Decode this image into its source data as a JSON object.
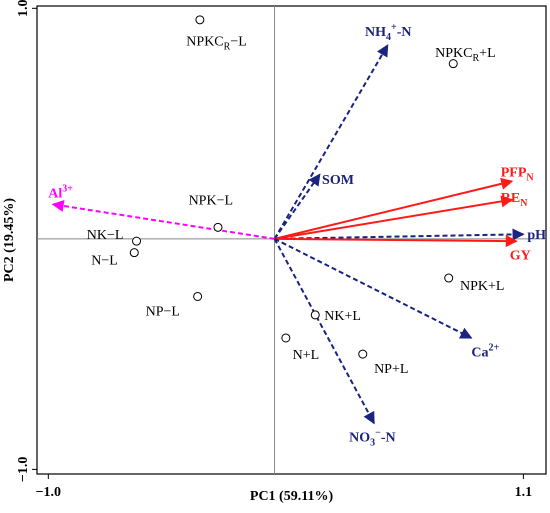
{
  "chart_data": {
    "type": "scatter",
    "subtype": "pca-biplot",
    "title": "",
    "xlabel": "PC1  (59.11%)",
    "ylabel": "PC2  (19.45%)",
    "xlim": [
      -1.05,
      1.2
    ],
    "ylim": [
      -1.02,
      1.01
    ],
    "x_ticks": [
      {
        "value": -1.0,
        "label": "−1.0"
      },
      {
        "value": 1.1,
        "label": "1.1"
      }
    ],
    "y_ticks": [
      {
        "value": 1.0,
        "label": "1.0"
      },
      {
        "value": -1.0,
        "label": "−1.0"
      }
    ],
    "grid": false,
    "reference_lines": {
      "x": 0,
      "y": 0
    },
    "point_style": {
      "marker": "open-circle",
      "color": "#000000"
    },
    "points": [
      {
        "name": "NPKC",
        "sub": "R",
        "suffix": "−L",
        "x": -0.33,
        "y": 0.95,
        "label_dx": -0.06,
        "label_dy": -0.09
      },
      {
        "name": "NPKC",
        "sub": "R",
        "suffix": "+L",
        "x": 0.79,
        "y": 0.76,
        "label_dx": -0.08,
        "label_dy": 0.05
      },
      {
        "name": "NPK−L",
        "x": -0.25,
        "y": 0.05,
        "label_dx": -0.13,
        "label_dy": 0.12
      },
      {
        "name": "NK−L",
        "x": -0.61,
        "y": -0.01,
        "label_dx": -0.22,
        "label_dy": 0.03
      },
      {
        "name": "N−L",
        "x": -0.62,
        "y": -0.06,
        "label_dx": -0.19,
        "label_dy": -0.03
      },
      {
        "name": "NP−L",
        "x": -0.34,
        "y": -0.25,
        "label_dx": -0.23,
        "label_dy": -0.06
      },
      {
        "name": "NPK+L",
        "x": 0.77,
        "y": -0.17,
        "label_dx": 0.05,
        "label_dy": -0.03
      },
      {
        "name": "NK+L",
        "x": 0.18,
        "y": -0.33,
        "label_dx": 0.04,
        "label_dy": 0.0
      },
      {
        "name": "N+L",
        "x": 0.05,
        "y": -0.43,
        "label_dx": 0.03,
        "label_dy": -0.07
      },
      {
        "name": "NP+L",
        "x": 0.39,
        "y": -0.5,
        "label_dx": 0.05,
        "label_dy": -0.06
      }
    ],
    "vectors": [
      {
        "label": "NH4+-N",
        "display": "NH",
        "sub": "4",
        "sup": "+",
        "tail": "-N",
        "color": "#1a237e",
        "style": "dashed",
        "x": 0.5,
        "y": 0.84,
        "label_x": 0.4,
        "label_y": 0.88
      },
      {
        "label": "SOM",
        "color": "#1a237e",
        "style": "dashed",
        "x": 0.2,
        "y": 0.28,
        "label_x": 0.21,
        "label_y": 0.25
      },
      {
        "label": "Al3+",
        "display": "Al",
        "sup": "3+",
        "color": "#ff00ff",
        "style": "dashed",
        "x": -0.98,
        "y": 0.15,
        "label_x": -1.0,
        "label_y": 0.18
      },
      {
        "label": "PFPN",
        "display": "PFP",
        "sub": "N",
        "color": "#ff1a1a",
        "style": "solid",
        "x": 1.05,
        "y": 0.25,
        "label_x": 1.0,
        "label_y": 0.27
      },
      {
        "label": "REN",
        "display": "RE",
        "sub": "N",
        "color": "#ff1a1a",
        "style": "solid",
        "x": 1.05,
        "y": 0.17,
        "label_x": 1.0,
        "label_y": 0.16
      },
      {
        "label": "pH",
        "color": "#1a237e",
        "style": "dashed",
        "x": 1.1,
        "y": 0.02,
        "label_x": 1.1,
        "label_y": 0.02
      },
      {
        "label": "GY",
        "color": "#ff1a1a",
        "style": "solid",
        "x": 1.07,
        "y": -0.01,
        "label_x": 1.04,
        "label_y": -0.09
      },
      {
        "label": "Ca2+",
        "display": "Ca",
        "sup": "2+",
        "color": "#1a237e",
        "style": "dashed",
        "x": 0.87,
        "y": -0.43,
        "label_x": 0.87,
        "label_y": -0.51
      },
      {
        "label": "NO3--N",
        "display": "NO",
        "sub": "3",
        "sup": "−",
        "tail": "-N",
        "color": "#1a237e",
        "style": "dashed",
        "x": 0.44,
        "y": -0.8,
        "label_x": 0.33,
        "label_y": -0.88
      }
    ]
  }
}
